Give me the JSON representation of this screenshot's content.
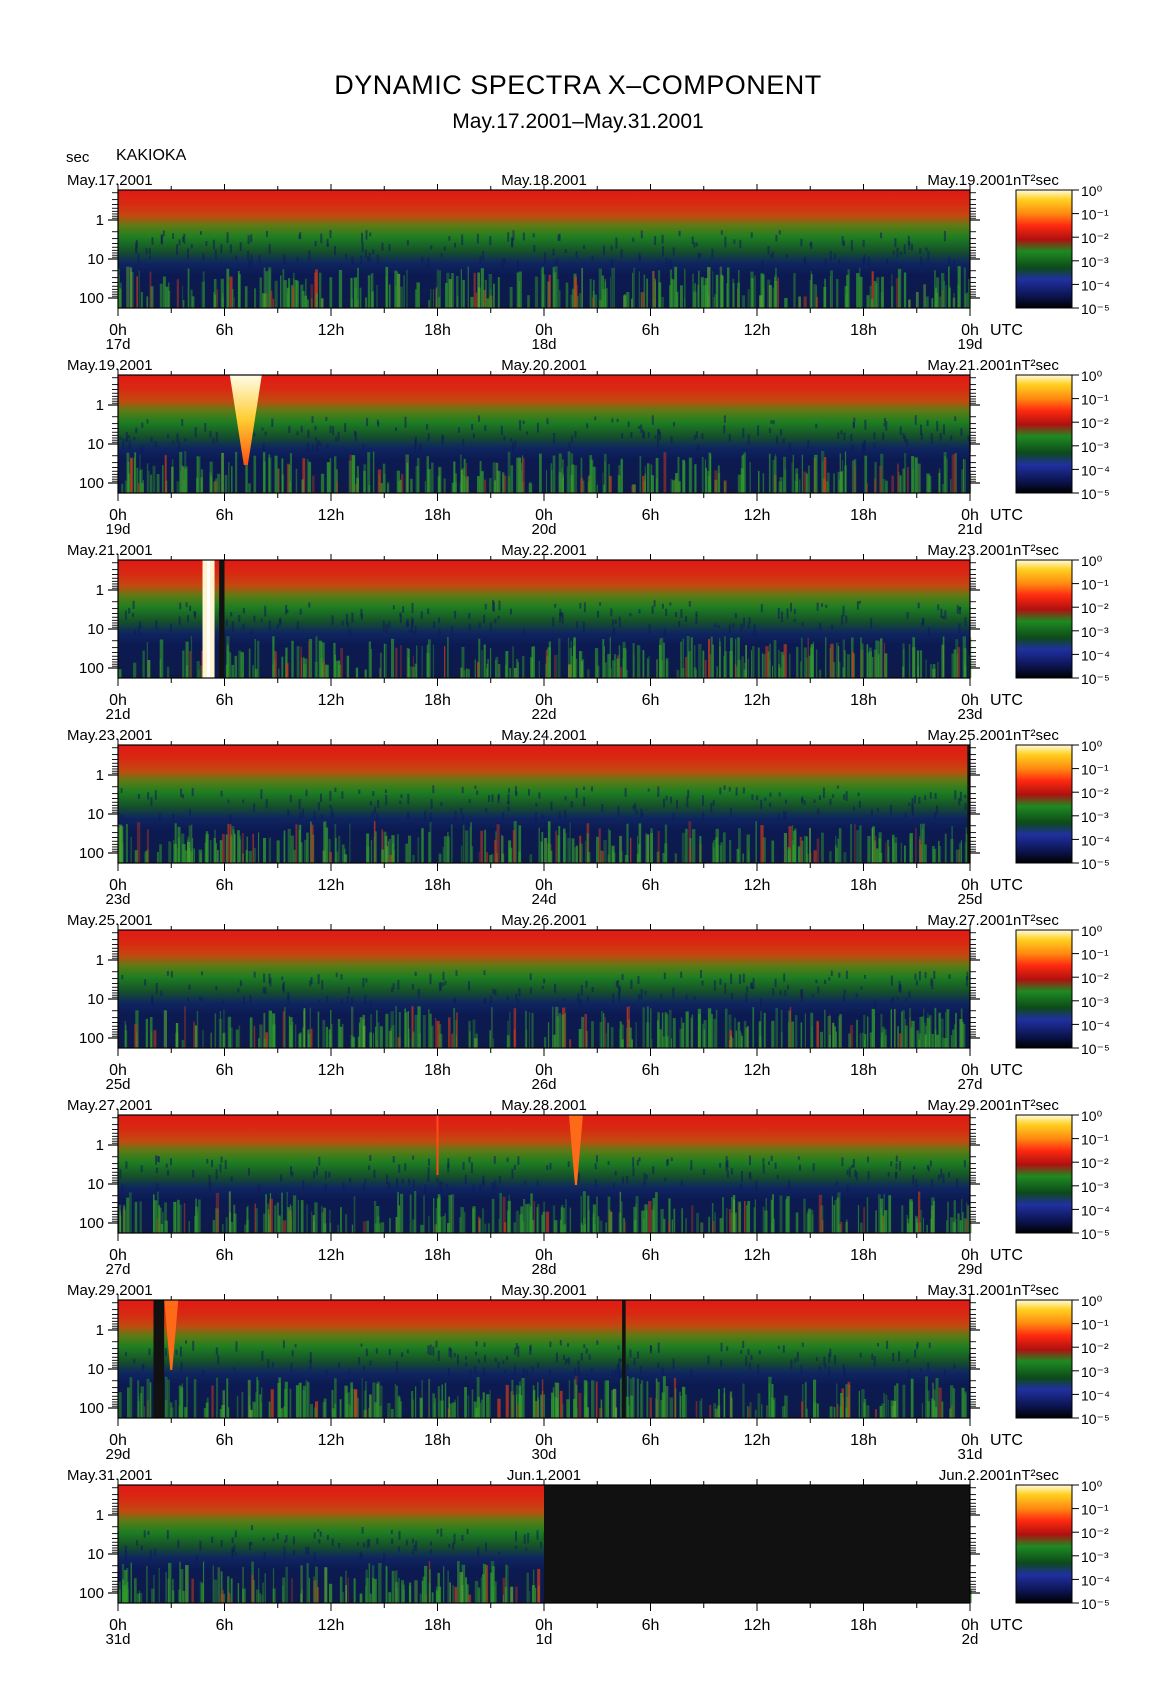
{
  "title": "DYNAMIC SPECTRA X–COMPONENT",
  "subtitle": "May.17.2001–May.31.2001",
  "station": "KAKIOKA",
  "y_unit": "sec",
  "colorbar_unit": "nT²sec",
  "colors": {
    "background": "#ffffff",
    "spectrum_top": "#e8201a",
    "spectrum_mid": "#1f8a1f",
    "spectrum_low": "#0f1a5c",
    "no_data": "#111111"
  },
  "chart_data": [
    {
      "type": "heatmap",
      "panel": 1,
      "date_labels": [
        "May.17.2001",
        "May.18.2001",
        "May.19.2001"
      ],
      "x_ticks": [
        "0h",
        "6h",
        "12h",
        "18h",
        "0h",
        "6h",
        "12h",
        "18h",
        "0h"
      ],
      "day_labels": [
        "17d",
        "18d",
        "19d"
      ],
      "x_unit": "UTC",
      "y_ticks": [
        "1",
        "10",
        "100"
      ],
      "ylabel": "sec",
      "y_scale": "log",
      "colorbar_ticks": [
        "10⁰",
        "10⁻¹",
        "10⁻²",
        "10⁻³",
        "10⁻⁴",
        "10⁻⁵"
      ],
      "events": [],
      "no_data": []
    },
    {
      "type": "heatmap",
      "panel": 2,
      "date_labels": [
        "May.19.2001",
        "May.20.2001",
        "May.21.2001"
      ],
      "x_ticks": [
        "0h",
        "6h",
        "12h",
        "18h",
        "0h",
        "6h",
        "12h",
        "18h",
        "0h"
      ],
      "day_labels": [
        "19d",
        "20d",
        "21d"
      ],
      "x_unit": "UTC",
      "y_ticks": [
        "1",
        "10",
        "100"
      ],
      "ylabel": "sec",
      "y_scale": "log",
      "colorbar_ticks": [
        "10⁰",
        "10⁻¹",
        "10⁻²",
        "10⁻³",
        "10⁻⁴",
        "10⁻⁵"
      ],
      "events": [
        {
          "hour": 7.2,
          "kind": "bright-v"
        }
      ],
      "no_data": []
    },
    {
      "type": "heatmap",
      "panel": 3,
      "date_labels": [
        "May.21.2001",
        "May.22.2001",
        "May.23.2001"
      ],
      "x_ticks": [
        "0h",
        "6h",
        "12h",
        "18h",
        "0h",
        "6h",
        "12h",
        "18h",
        "0h"
      ],
      "day_labels": [
        "21d",
        "22d",
        "23d"
      ],
      "x_unit": "UTC",
      "y_ticks": [
        "1",
        "10",
        "100"
      ],
      "ylabel": "sec",
      "y_scale": "log",
      "colorbar_ticks": [
        "10⁰",
        "10⁻¹",
        "10⁻²",
        "10⁻³",
        "10⁻⁴",
        "10⁻⁵"
      ],
      "events": [
        {
          "hour": 5.1,
          "kind": "bright-line"
        }
      ],
      "no_data": [
        [
          5.7,
          6.0
        ]
      ]
    },
    {
      "type": "heatmap",
      "panel": 4,
      "date_labels": [
        "May.23.2001",
        "May.24.2001",
        "May.25.2001"
      ],
      "x_ticks": [
        "0h",
        "6h",
        "12h",
        "18h",
        "0h",
        "6h",
        "12h",
        "18h",
        "0h"
      ],
      "day_labels": [
        "23d",
        "24d",
        "25d"
      ],
      "x_unit": "UTC",
      "y_ticks": [
        "1",
        "10",
        "100"
      ],
      "ylabel": "sec",
      "y_scale": "log",
      "colorbar_ticks": [
        "10⁰",
        "10⁻¹",
        "10⁻²",
        "10⁻³",
        "10⁻⁴",
        "10⁻⁵"
      ],
      "events": [],
      "no_data": [
        [
          47.85,
          48.0
        ]
      ]
    },
    {
      "type": "heatmap",
      "panel": 5,
      "date_labels": [
        "May.25.2001",
        "May.26.2001",
        "May.27.2001"
      ],
      "x_ticks": [
        "0h",
        "6h",
        "12h",
        "18h",
        "0h",
        "6h",
        "12h",
        "18h",
        "0h"
      ],
      "day_labels": [
        "25d",
        "26d",
        "27d"
      ],
      "x_unit": "UTC",
      "y_ticks": [
        "1",
        "10",
        "100"
      ],
      "ylabel": "sec",
      "y_scale": "log",
      "colorbar_ticks": [
        "10⁰",
        "10⁻¹",
        "10⁻²",
        "10⁻³",
        "10⁻⁴",
        "10⁻⁵"
      ],
      "events": [],
      "no_data": []
    },
    {
      "type": "heatmap",
      "panel": 6,
      "date_labels": [
        "May.27.2001",
        "May.28.2001",
        "May.29.2001"
      ],
      "x_ticks": [
        "0h",
        "6h",
        "12h",
        "18h",
        "0h",
        "6h",
        "12h",
        "18h",
        "0h"
      ],
      "day_labels": [
        "27d",
        "28d",
        "29d"
      ],
      "x_unit": "UTC",
      "y_ticks": [
        "1",
        "10",
        "100"
      ],
      "ylabel": "sec",
      "y_scale": "log",
      "colorbar_ticks": [
        "10⁰",
        "10⁻¹",
        "10⁻²",
        "10⁻³",
        "10⁻⁴",
        "10⁻⁵"
      ],
      "events": [
        {
          "hour": 18.0,
          "kind": "thin-v"
        },
        {
          "hour": 25.8,
          "kind": "red-v"
        }
      ],
      "no_data": []
    },
    {
      "type": "heatmap",
      "panel": 7,
      "date_labels": [
        "May.29.2001",
        "May.30.2001",
        "May.31.2001"
      ],
      "x_ticks": [
        "0h",
        "6h",
        "12h",
        "18h",
        "0h",
        "6h",
        "12h",
        "18h",
        "0h"
      ],
      "day_labels": [
        "29d",
        "30d",
        "31d"
      ],
      "x_unit": "UTC",
      "y_ticks": [
        "1",
        "10",
        "100"
      ],
      "ylabel": "sec",
      "y_scale": "log",
      "colorbar_ticks": [
        "10⁰",
        "10⁻¹",
        "10⁻²",
        "10⁻³",
        "10⁻⁴",
        "10⁻⁵"
      ],
      "events": [
        {
          "hour": 3.0,
          "kind": "red-v"
        }
      ],
      "no_data": [
        [
          2.0,
          2.6
        ],
        [
          28.4,
          28.6
        ]
      ]
    },
    {
      "type": "heatmap",
      "panel": 8,
      "date_labels": [
        "May.31.2001",
        "Jun.1.2001",
        "Jun.2.2001"
      ],
      "x_ticks": [
        "0h",
        "6h",
        "12h",
        "18h",
        "0h",
        "6h",
        "12h",
        "18h",
        "0h"
      ],
      "day_labels": [
        "31d",
        "1d",
        "2d"
      ],
      "x_unit": "UTC",
      "y_ticks": [
        "1",
        "10",
        "100"
      ],
      "ylabel": "sec",
      "y_scale": "log",
      "colorbar_ticks": [
        "10⁰",
        "10⁻¹",
        "10⁻²",
        "10⁻³",
        "10⁻⁴",
        "10⁻⁵"
      ],
      "events": [],
      "no_data": [
        [
          24.0,
          48.0
        ]
      ]
    }
  ]
}
